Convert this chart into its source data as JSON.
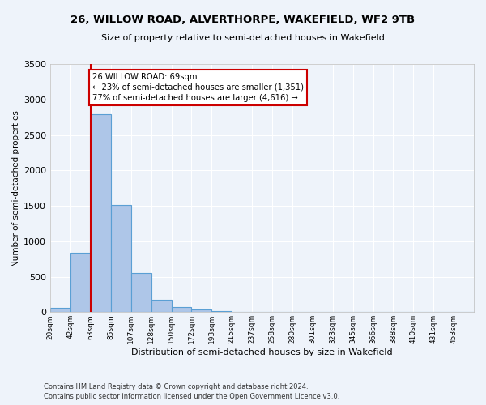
{
  "title1": "26, WILLOW ROAD, ALVERTHORPE, WAKEFIELD, WF2 9TB",
  "title2": "Size of property relative to semi-detached houses in Wakefield",
  "xlabel": "Distribution of semi-detached houses by size in Wakefield",
  "ylabel": "Number of semi-detached properties",
  "footer1": "Contains HM Land Registry data © Crown copyright and database right 2024.",
  "footer2": "Contains public sector information licensed under the Open Government Licence v3.0.",
  "bar_labels": [
    "20sqm",
    "42sqm",
    "63sqm",
    "85sqm",
    "107sqm",
    "128sqm",
    "150sqm",
    "172sqm",
    "193sqm",
    "215sqm",
    "237sqm",
    "258sqm",
    "280sqm",
    "301sqm",
    "323sqm",
    "345sqm",
    "366sqm",
    "388sqm",
    "410sqm",
    "431sqm",
    "453sqm"
  ],
  "bar_values": [
    65,
    835,
    2790,
    1510,
    550,
    175,
    70,
    40,
    20,
    0,
    0,
    0,
    0,
    0,
    0,
    0,
    0,
    0,
    0,
    0,
    0
  ],
  "bar_color": "#aec6e8",
  "bar_edge_color": "#5a9fd4",
  "annotation_text": "26 WILLOW ROAD: 69sqm\n← 23% of semi-detached houses are smaller (1,351)\n77% of semi-detached houses are larger (4,616) →",
  "ylim": [
    0,
    3500
  ],
  "background_color": "#eef3fa",
  "grid_color": "#ffffff",
  "annotation_box_color": "#ffffff",
  "annotation_box_edge": "#cc0000",
  "vline_color": "#cc0000",
  "vline_x_index": 2.0
}
